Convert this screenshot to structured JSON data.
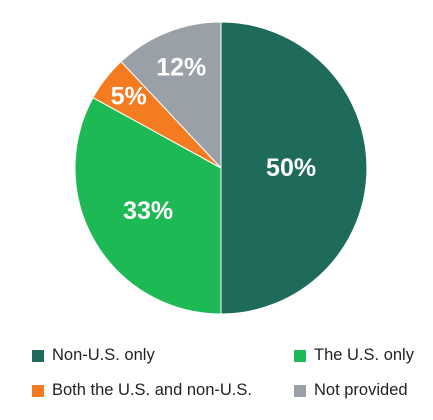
{
  "chart_data": {
    "type": "pie",
    "title": "",
    "slices": [
      {
        "label": "Non-U.S. only",
        "value": 50,
        "display": "50%",
        "color": "#1e6b5c"
      },
      {
        "label": "The U.S. only",
        "value": 33,
        "display": "33%",
        "color": "#1db954"
      },
      {
        "label": "Both the U.S. and non-U.S.",
        "value": 5,
        "display": "5%",
        "color": "#f47b20"
      },
      {
        "label": "Not provided",
        "value": 12,
        "display": "12%",
        "color": "#9aa0a8"
      }
    ],
    "legend_placement": "bottom",
    "start_angle": "top, clockwise"
  }
}
